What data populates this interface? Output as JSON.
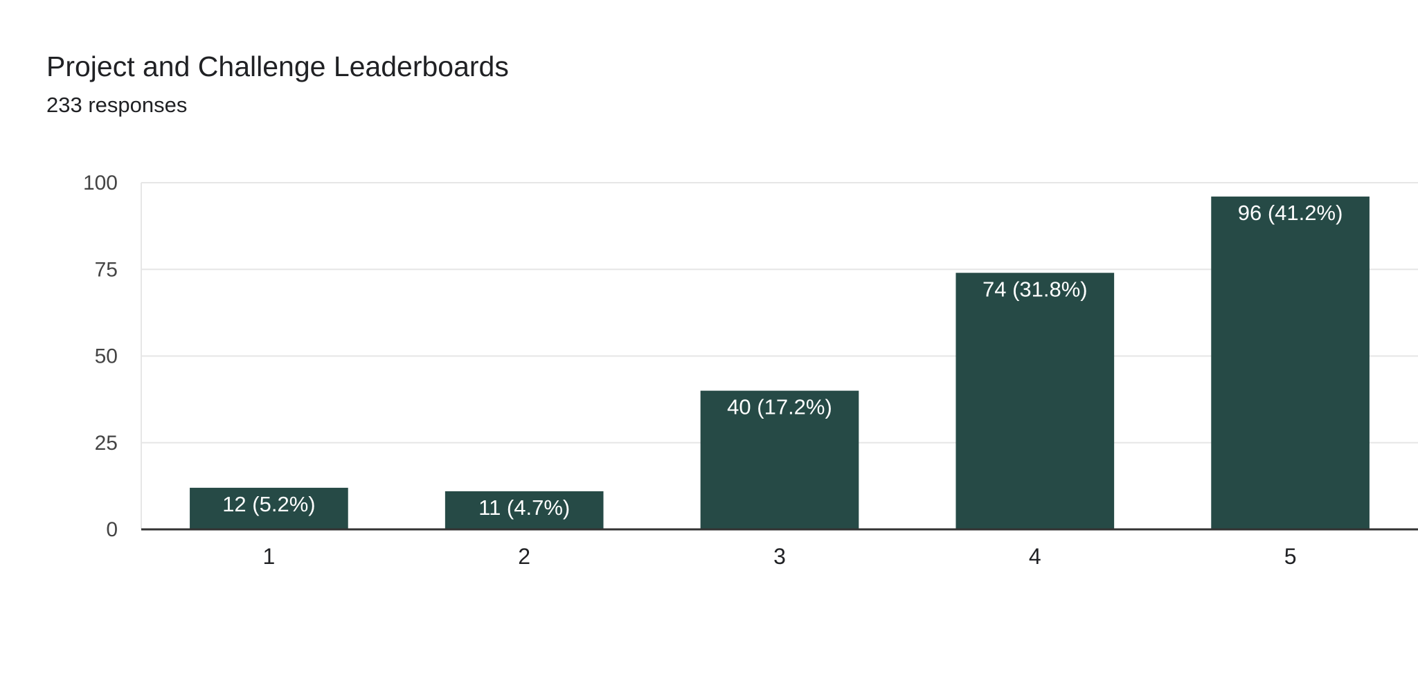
{
  "header": {
    "title": "Project and Challenge Leaderboards",
    "responses": "233 responses"
  },
  "chart_data": {
    "type": "bar",
    "title": "Project and Challenge Leaderboards",
    "categories": [
      "1",
      "2",
      "3",
      "4",
      "5"
    ],
    "values": [
      12,
      11,
      40,
      74,
      96
    ],
    "data_labels": [
      "12 (5.2%)",
      "11 (4.7%)",
      "40 (17.2%)",
      "74 (31.8%)",
      "96 (41.2%)"
    ],
    "ylim": [
      0,
      100
    ],
    "yticks": [
      0,
      25,
      50,
      75,
      100
    ],
    "xlabel": "",
    "ylabel": "",
    "grid": true,
    "legend": "none",
    "colors": {
      "bar": "#264a46",
      "grid": "#e6e6e6",
      "axis": "#333333"
    }
  }
}
